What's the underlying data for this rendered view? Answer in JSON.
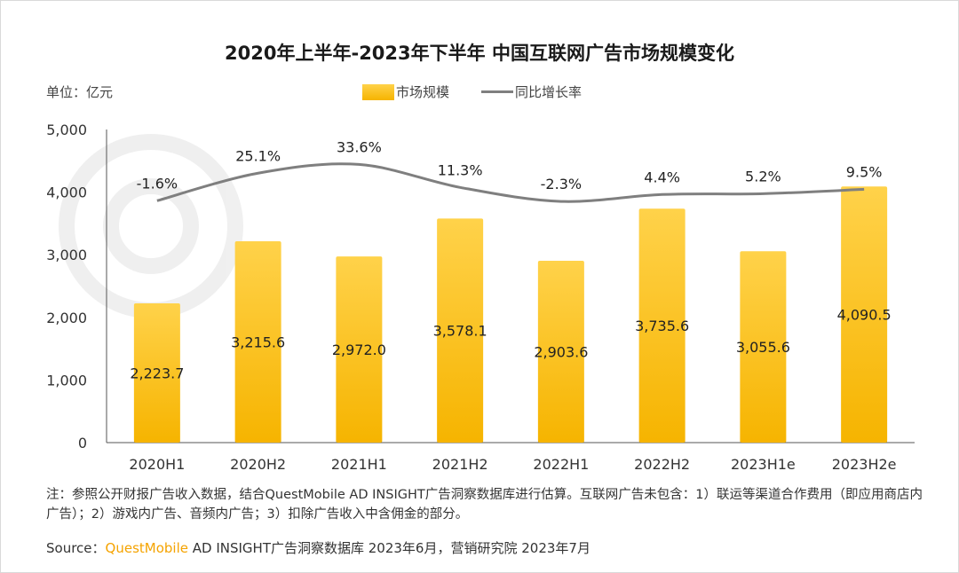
{
  "title": "2020年上半年-2023年下半年 中国互联网广告市场规模变化",
  "unit_label": "单位：亿元",
  "legend": {
    "bar": "市场规模",
    "line": "同比增长率"
  },
  "colors": {
    "bar_top": "#ffd24a",
    "bar_bottom": "#f6b400",
    "line": "#7f7f7f"
  },
  "chart_data": {
    "type": "bar",
    "categories": [
      "2020H1",
      "2020H2",
      "2021H1",
      "2021H2",
      "2022H1",
      "2022H2",
      "2023H1e",
      "2023H2e"
    ],
    "series": [
      {
        "name": "市场规模",
        "type": "bar",
        "values": [
          2223.7,
          3215.6,
          2972.0,
          3578.1,
          2903.6,
          3735.6,
          3055.6,
          4090.5
        ],
        "labels": [
          "2,223.7",
          "3,215.6",
          "2,972.0",
          "3,578.1",
          "2,903.6",
          "3,735.6",
          "3,055.6",
          "4,090.5"
        ]
      },
      {
        "name": "同比增长率",
        "type": "line",
        "values": [
          -1.6,
          25.1,
          33.6,
          11.3,
          -2.3,
          4.4,
          5.2,
          9.5
        ],
        "labels": [
          "-1.6%",
          "25.1%",
          "33.6%",
          "11.3%",
          "-2.3%",
          "4.4%",
          "5.2%",
          "9.5%"
        ]
      }
    ],
    "ylim": [
      0,
      5000
    ],
    "yticks": [
      0,
      1000,
      2000,
      3000,
      4000,
      5000
    ],
    "ytick_labels": [
      "0",
      "1,000",
      "2,000",
      "3,000",
      "4,000",
      "5,000"
    ],
    "xlabel": "",
    "ylabel": ""
  },
  "note": "注：参照公开财报广告收入数据，结合QuestMobile AD INSIGHT广告洞察数据库进行估算。互联网广告未包含：1）联运等渠道合作费用（即应用商店内广告）；2）游戏内广告、音频内广告；3）扣除广告收入中含佣金的部分。",
  "source": {
    "prefix": "Source：",
    "brand": "QuestMobile",
    "rest": " AD INSIGHT广告洞察数据库 2023年6月，营销研究院 2023年7月"
  }
}
